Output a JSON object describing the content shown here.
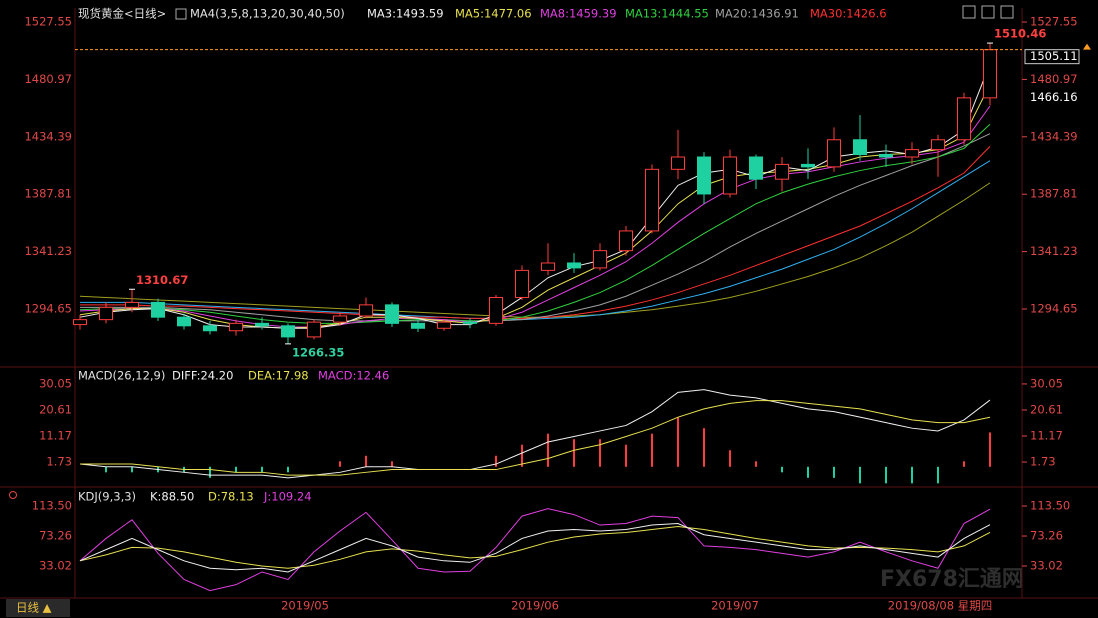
{
  "chart_data": {
    "type": "candlestick",
    "title": "现货黄金<日线>",
    "indicator": "MA4(3,5,8,13,20,30,40,50)",
    "candles": [
      [
        1282,
        1290,
        1278,
        1286
      ],
      [
        1286,
        1300,
        1283,
        1296
      ],
      [
        1296,
        1310.67,
        1292,
        1300
      ],
      [
        1300,
        1303,
        1285,
        1288
      ],
      [
        1288,
        1291,
        1278,
        1281
      ],
      [
        1281,
        1285,
        1274,
        1277
      ],
      [
        1277,
        1286,
        1273,
        1283
      ],
      [
        1283,
        1288,
        1278,
        1281
      ],
      [
        1281,
        1283,
        1266.35,
        1272
      ],
      [
        1272,
        1286,
        1270,
        1284
      ],
      [
        1284,
        1292,
        1281,
        1289
      ],
      [
        1289,
        1304,
        1287,
        1298
      ],
      [
        1298,
        1300,
        1280,
        1283
      ],
      [
        1283,
        1287,
        1276,
        1279
      ],
      [
        1279,
        1286,
        1277,
        1284
      ],
      [
        1284,
        1287,
        1279,
        1283
      ],
      [
        1283,
        1306,
        1281,
        1304
      ],
      [
        1304,
        1330,
        1302,
        1326
      ],
      [
        1326,
        1348,
        1322,
        1332
      ],
      [
        1332,
        1340,
        1324,
        1328
      ],
      [
        1328,
        1348,
        1326,
        1342
      ],
      [
        1342,
        1362,
        1338,
        1358
      ],
      [
        1358,
        1412,
        1356,
        1408
      ],
      [
        1408,
        1440,
        1400,
        1418
      ],
      [
        1418,
        1422,
        1380,
        1388
      ],
      [
        1388,
        1424,
        1385,
        1418
      ],
      [
        1418,
        1420,
        1392,
        1400
      ],
      [
        1400,
        1418,
        1390,
        1412
      ],
      [
        1412,
        1425,
        1400,
        1410
      ],
      [
        1410,
        1442,
        1406,
        1432
      ],
      [
        1432,
        1452,
        1415,
        1420
      ],
      [
        1420,
        1428,
        1410,
        1418
      ],
      [
        1418,
        1430,
        1412,
        1424
      ],
      [
        1424,
        1436,
        1402,
        1432
      ],
      [
        1432,
        1470,
        1428,
        1466
      ],
      [
        1466,
        1510.46,
        1460,
        1505.11
      ]
    ],
    "up_color": "#ff3c3c",
    "down_color": "#1fd1a0",
    "series": [
      {
        "name": "MA3:1493.59",
        "color": "#f0f0f0",
        "values": [
          1288,
          1292,
          1294,
          1295,
          1290,
          1282,
          1280,
          1280,
          1279,
          1279,
          1282,
          1290,
          1290,
          1287,
          1282,
          1282,
          1290,
          1304,
          1320,
          1329,
          1334,
          1343,
          1369,
          1395,
          1405,
          1408,
          1402,
          1410,
          1407,
          1418,
          1421,
          1423,
          1420,
          1426,
          1440,
          1493.59
        ]
      },
      {
        "name": "MA5:1477.06",
        "color": "#e8e050",
        "values": [
          1290,
          1293,
          1295,
          1295,
          1292,
          1286,
          1282,
          1280,
          1279,
          1280,
          1283,
          1288,
          1288,
          1287,
          1285,
          1283,
          1287,
          1296,
          1310,
          1320,
          1330,
          1340,
          1358,
          1380,
          1395,
          1402,
          1405,
          1406,
          1408,
          1412,
          1418,
          1420,
          1421,
          1424,
          1435,
          1477.06
        ]
      },
      {
        "name": "MA8:1459.39",
        "color": "#e040e0",
        "values": [
          1293,
          1294,
          1295,
          1295,
          1293,
          1289,
          1285,
          1282,
          1280,
          1280,
          1282,
          1285,
          1287,
          1287,
          1286,
          1284,
          1286,
          1292,
          1302,
          1312,
          1322,
          1333,
          1348,
          1365,
          1380,
          1392,
          1400,
          1404,
          1406,
          1410,
          1414,
          1417,
          1419,
          1422,
          1430,
          1459.39
        ]
      },
      {
        "name": "MA13:1444.55",
        "color": "#30d040",
        "values": [
          1294,
          1295,
          1295,
          1295,
          1294,
          1292,
          1289,
          1286,
          1284,
          1283,
          1283,
          1284,
          1285,
          1286,
          1286,
          1285,
          1285,
          1288,
          1293,
          1300,
          1308,
          1318,
          1330,
          1343,
          1356,
          1368,
          1380,
          1389,
          1396,
          1402,
          1407,
          1411,
          1414,
          1418,
          1425,
          1444.55
        ]
      },
      {
        "name": "MA20:1436.91",
        "color": "#a0a0a0",
        "values": [
          1296,
          1296,
          1296,
          1296,
          1295,
          1294,
          1292,
          1290,
          1288,
          1286,
          1285,
          1285,
          1285,
          1285,
          1285,
          1285,
          1285,
          1286,
          1289,
          1293,
          1298,
          1305,
          1314,
          1323,
          1333,
          1345,
          1356,
          1366,
          1376,
          1386,
          1395,
          1403,
          1411,
          1418,
          1427,
          1436.91
        ]
      },
      {
        "name": "MA30:1426.6",
        "color": "#ff3030",
        "values": [
          1298,
          1298,
          1298,
          1297,
          1297,
          1296,
          1295,
          1294,
          1293,
          1292,
          1291,
          1290,
          1289,
          1288,
          1288,
          1287,
          1287,
          1287,
          1288,
          1290,
          1293,
          1297,
          1302,
          1308,
          1315,
          1322,
          1330,
          1338,
          1346,
          1354,
          1362,
          1372,
          1382,
          1393,
          1405,
          1426.6
        ]
      },
      {
        "color": "#30b0f0",
        "values": [
          1300,
          1300,
          1300,
          1299,
          1298,
          1297,
          1296,
          1295,
          1294,
          1293,
          1292,
          1291,
          1290,
          1289,
          1288,
          1287,
          1287,
          1286,
          1287,
          1288,
          1290,
          1293,
          1297,
          1302,
          1307,
          1313,
          1320,
          1327,
          1335,
          1343,
          1353,
          1364,
          1376,
          1389,
          1402,
          1415
        ]
      },
      {
        "color": "#a0a020",
        "values": [
          1305,
          1304,
          1303,
          1302,
          1301,
          1300,
          1299,
          1298,
          1297,
          1296,
          1295,
          1294,
          1293,
          1292,
          1291,
          1290,
          1289,
          1288,
          1288,
          1289,
          1290,
          1292,
          1294,
          1297,
          1300,
          1304,
          1309,
          1315,
          1321,
          1328,
          1336,
          1346,
          1357,
          1370,
          1383,
          1397
        ]
      }
    ],
    "ylim": [
      1249.2,
      1537.3
    ],
    "yticks": [
      1527.55,
      1480.97,
      1434.39,
      1387.81,
      1341.23,
      1294.65
    ],
    "last_price": 1505.11,
    "ref_price": 1466.16,
    "annotations": [
      1310.67,
      1266.35,
      1510.46
    ],
    "x_labels": [
      "2019/05",
      "2019/06",
      "2019/07",
      "2019/08/08 星期四"
    ],
    "period_button": "日线 ▲",
    "watermark": "FX678汇通网",
    "macd": {
      "title": "MACD(26,12,9)",
      "ylim": [
        -6.6,
        35.1
      ],
      "yticks": [
        30.05,
        20.61,
        11.17,
        1.73
      ],
      "lines": [
        {
          "name": "DIFF:24.20",
          "color": "#f0f0f0",
          "values": [
            1,
            0,
            0,
            -1,
            -2,
            -3,
            -3,
            -3,
            -4,
            -3,
            -2,
            0,
            0,
            -1,
            -1,
            -1,
            1,
            5,
            9,
            11,
            13,
            15,
            20,
            27,
            28,
            26,
            25,
            23,
            21,
            20,
            18,
            16,
            14,
            13,
            17,
            24.2
          ]
        },
        {
          "name": "DEA:17.98",
          "color": "#e8e050",
          "values": [
            1,
            1,
            1,
            0,
            -1,
            -1,
            -2,
            -2,
            -3,
            -3,
            -3,
            -2,
            -1,
            -1,
            -1,
            -1,
            -1,
            1,
            3,
            6,
            8,
            11,
            14,
            18,
            21,
            23,
            24,
            24,
            23,
            22,
            21,
            19,
            17,
            16,
            16,
            17.98
          ]
        }
      ],
      "hist": {
        "name": "MACD:12.46",
        "color": "#e040e0",
        "values": [
          0,
          -2,
          -2,
          -2,
          -2,
          -4,
          -2,
          -2,
          -2,
          0,
          2,
          4,
          2,
          0,
          0,
          0,
          4,
          8,
          12,
          10,
          10,
          8,
          12,
          18,
          14,
          6,
          2,
          -2,
          -4,
          -4,
          -6,
          -6,
          -6,
          -6,
          2,
          12.46
        ]
      }
    },
    "kdj": {
      "title": "KDJ(9,3,3)",
      "ylim": [
        -9.9,
        135
      ],
      "yticks": [
        {
          "value": 113.5,
          "label": "113.50"
        },
        73.26,
        33.02
      ],
      "lines": [
        {
          "name": "K:88.50",
          "color": "#f0f0f0",
          "values": [
            40,
            55,
            70,
            55,
            40,
            30,
            28,
            30,
            25,
            40,
            55,
            70,
            60,
            45,
            40,
            38,
            50,
            70,
            80,
            82,
            80,
            82,
            88,
            90,
            75,
            70,
            65,
            60,
            55,
            55,
            60,
            55,
            50,
            45,
            70,
            88.5
          ]
        },
        {
          "name": "D:78.13",
          "color": "#e8e050",
          "values": [
            40,
            48,
            58,
            57,
            52,
            45,
            38,
            33,
            30,
            34,
            42,
            52,
            56,
            53,
            48,
            44,
            46,
            55,
            65,
            72,
            76,
            78,
            82,
            86,
            82,
            76,
            70,
            65,
            60,
            57,
            58,
            57,
            55,
            52,
            60,
            78.13
          ]
        },
        {
          "name": "J:109.24",
          "color": "#e040e0",
          "values": [
            40,
            70,
            95,
            50,
            15,
            0,
            8,
            25,
            15,
            52,
            80,
            105,
            68,
            30,
            25,
            26,
            58,
            100,
            110,
            102,
            88,
            90,
            100,
            98,
            60,
            58,
            55,
            50,
            45,
            52,
            65,
            52,
            40,
            30,
            90,
            109.24
          ]
        }
      ]
    }
  }
}
